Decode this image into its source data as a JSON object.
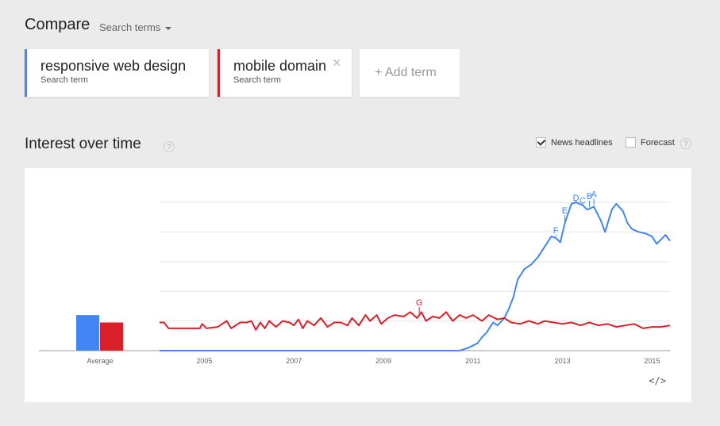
{
  "header": {
    "compare_label": "Compare",
    "search_terms_label": "Search terms"
  },
  "terms": [
    {
      "title": "responsive web design",
      "subtitle": "Search term",
      "color": "#4285f4"
    },
    {
      "title": "mobile domain",
      "subtitle": "Search term",
      "color": "#db1f29"
    }
  ],
  "add_term_label": "+ Add term",
  "interest": {
    "title": "Interest over time",
    "news_headlines_label": "News headlines",
    "news_headlines_checked": true,
    "forecast_label": "Forecast",
    "forecast_checked": false,
    "embed_label": "</>"
  },
  "chart_data": {
    "type": "line",
    "x_ticks": [
      "2005",
      "2007",
      "2009",
      "2011",
      "2013",
      "2015"
    ],
    "x_range": [
      2004.0,
      2015.4
    ],
    "ylim": [
      0,
      100
    ],
    "grid": true,
    "average_label": "Average",
    "average_values": [
      24,
      19
    ],
    "series": [
      {
        "name": "responsive web design",
        "color": "#4285f4",
        "points": [
          [
            2004.0,
            0
          ],
          [
            2010.3,
            0
          ],
          [
            2010.7,
            0
          ],
          [
            2010.9,
            2
          ],
          [
            2011.1,
            5
          ],
          [
            2011.2,
            9
          ],
          [
            2011.3,
            12
          ],
          [
            2011.45,
            19
          ],
          [
            2011.55,
            17
          ],
          [
            2011.7,
            22
          ],
          [
            2011.8,
            28
          ],
          [
            2011.9,
            36
          ],
          [
            2012.0,
            48
          ],
          [
            2012.15,
            55
          ],
          [
            2012.3,
            58
          ],
          [
            2012.45,
            63
          ],
          [
            2012.6,
            70
          ],
          [
            2012.75,
            77
          ],
          [
            2012.85,
            76
          ],
          [
            2012.95,
            73
          ],
          [
            2013.05,
            86
          ],
          [
            2013.2,
            99
          ],
          [
            2013.3,
            100
          ],
          [
            2013.45,
            98
          ],
          [
            2013.55,
            95
          ],
          [
            2013.7,
            97
          ],
          [
            2013.85,
            88
          ],
          [
            2013.95,
            80
          ],
          [
            2014.1,
            95
          ],
          [
            2014.2,
            99
          ],
          [
            2014.35,
            94
          ],
          [
            2014.45,
            86
          ],
          [
            2014.55,
            82
          ],
          [
            2014.7,
            80
          ],
          [
            2014.85,
            79
          ],
          [
            2015.0,
            77
          ],
          [
            2015.1,
            72
          ],
          [
            2015.2,
            75
          ],
          [
            2015.3,
            78
          ],
          [
            2015.4,
            74
          ]
        ]
      },
      {
        "name": "mobile domain",
        "color": "#db1f29",
        "points": [
          [
            2004.0,
            19
          ],
          [
            2004.1,
            19
          ],
          [
            2004.2,
            15
          ],
          [
            2004.9,
            15
          ],
          [
            2004.95,
            18
          ],
          [
            2005.05,
            15
          ],
          [
            2005.3,
            16
          ],
          [
            2005.5,
            20
          ],
          [
            2005.6,
            15
          ],
          [
            2005.8,
            19
          ],
          [
            2005.95,
            19
          ],
          [
            2006.05,
            20
          ],
          [
            2006.15,
            14
          ],
          [
            2006.25,
            19
          ],
          [
            2006.35,
            15
          ],
          [
            2006.45,
            20
          ],
          [
            2006.6,
            16
          ],
          [
            2006.75,
            20
          ],
          [
            2006.9,
            19
          ],
          [
            2007.0,
            17
          ],
          [
            2007.1,
            21
          ],
          [
            2007.2,
            15
          ],
          [
            2007.3,
            20
          ],
          [
            2007.45,
            17
          ],
          [
            2007.6,
            22
          ],
          [
            2007.75,
            16
          ],
          [
            2007.9,
            19
          ],
          [
            2008.05,
            19
          ],
          [
            2008.2,
            17
          ],
          [
            2008.3,
            22
          ],
          [
            2008.45,
            17
          ],
          [
            2008.6,
            24
          ],
          [
            2008.7,
            20
          ],
          [
            2008.85,
            24
          ],
          [
            2008.95,
            18
          ],
          [
            2009.1,
            22
          ],
          [
            2009.25,
            24
          ],
          [
            2009.45,
            23
          ],
          [
            2009.6,
            26
          ],
          [
            2009.75,
            22
          ],
          [
            2009.85,
            26
          ],
          [
            2009.95,
            20
          ],
          [
            2010.1,
            23
          ],
          [
            2010.25,
            22
          ],
          [
            2010.4,
            26
          ],
          [
            2010.55,
            20
          ],
          [
            2010.7,
            24
          ],
          [
            2010.85,
            22
          ],
          [
            2011.0,
            24
          ],
          [
            2011.2,
            20
          ],
          [
            2011.35,
            24
          ],
          [
            2011.55,
            21
          ],
          [
            2011.7,
            22
          ],
          [
            2011.85,
            19
          ],
          [
            2012.05,
            18
          ],
          [
            2012.25,
            20
          ],
          [
            2012.45,
            18
          ],
          [
            2012.6,
            20
          ],
          [
            2012.8,
            19
          ],
          [
            2013.0,
            18
          ],
          [
            2013.2,
            19
          ],
          [
            2013.4,
            17
          ],
          [
            2013.6,
            19
          ],
          [
            2013.8,
            17
          ],
          [
            2014.0,
            18
          ],
          [
            2014.2,
            16
          ],
          [
            2014.4,
            17
          ],
          [
            2014.6,
            18
          ],
          [
            2014.8,
            15
          ],
          [
            2015.0,
            16
          ],
          [
            2015.2,
            16
          ],
          [
            2015.4,
            17
          ]
        ]
      }
    ],
    "annotations": [
      {
        "label": "G",
        "x": 2009.8,
        "series": 1
      },
      {
        "label": "F",
        "x": 2012.85,
        "series": 0
      },
      {
        "label": "E",
        "x": 2013.05,
        "series": 0
      },
      {
        "label": "D",
        "x": 2013.3,
        "series": 0
      },
      {
        "label": "C",
        "x": 2013.45,
        "series": 0
      },
      {
        "label": "B",
        "x": 2013.6,
        "series": 0
      },
      {
        "label": "A",
        "x": 2013.7,
        "series": 0
      }
    ]
  }
}
